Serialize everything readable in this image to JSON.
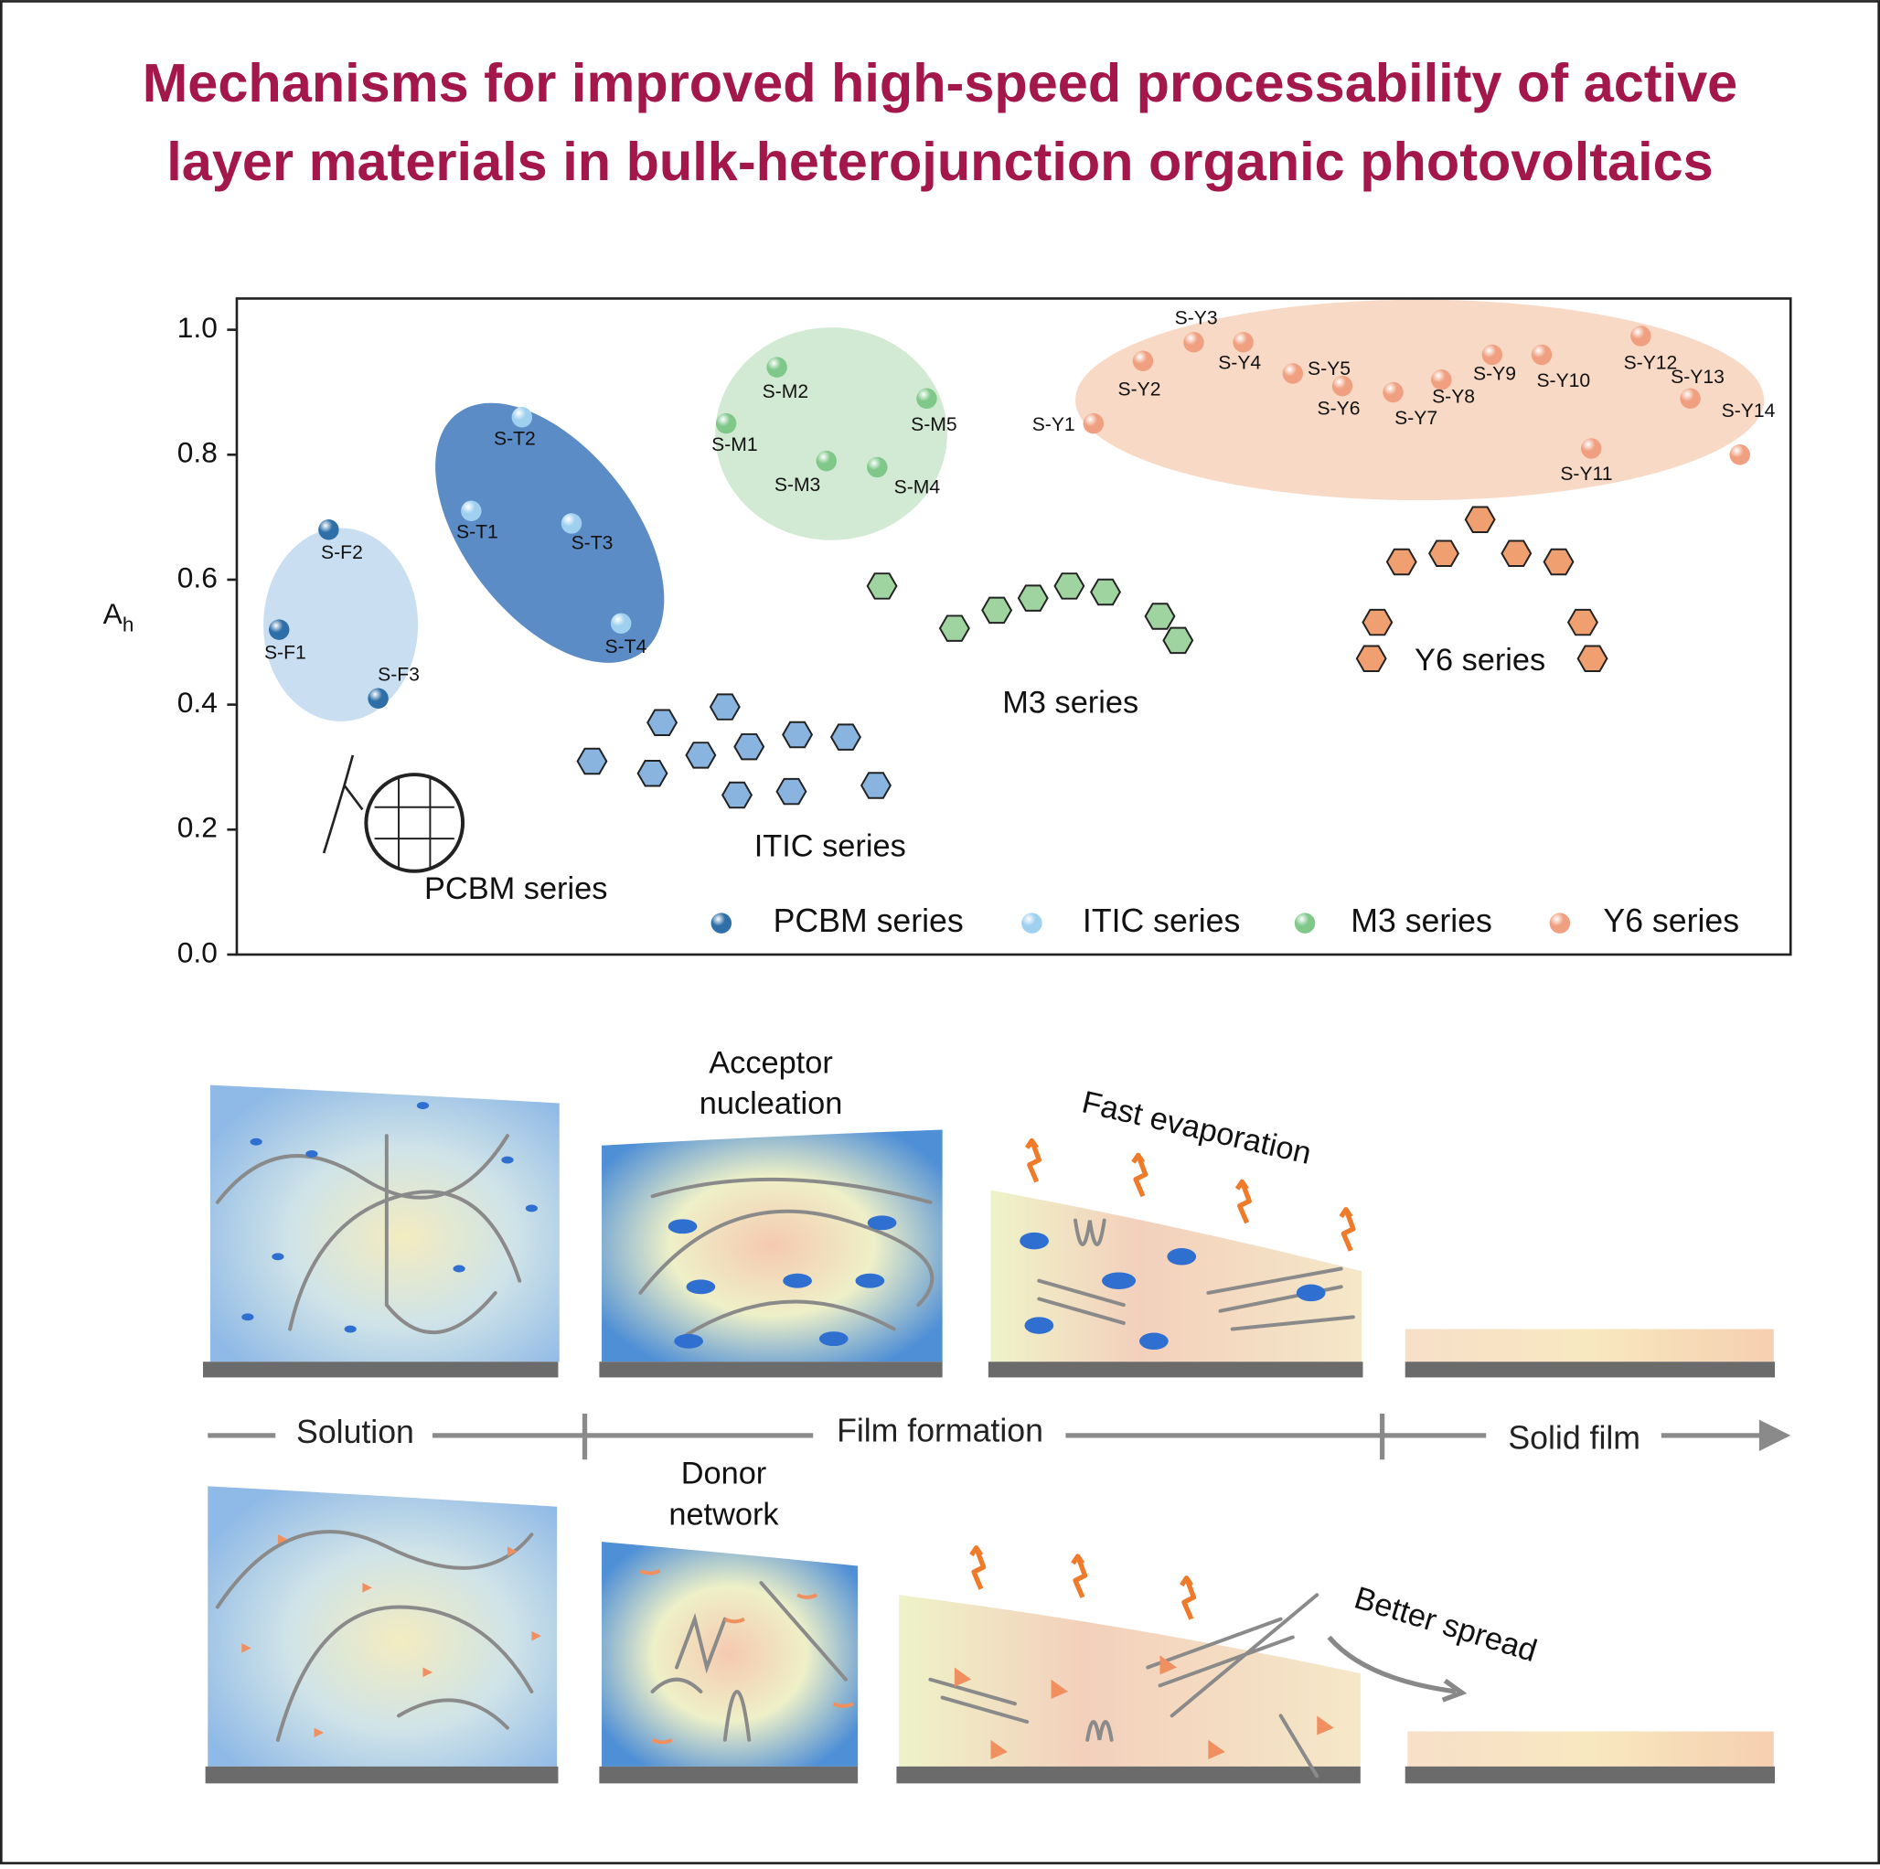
{
  "title_lines": [
    "Mechanisms for improved high-speed processability of active",
    "layer materials in bulk-heterojunction organic photovoltaics"
  ],
  "chart_data": {
    "type": "scatter",
    "ylabel": "A",
    "ylabel_sub": "h",
    "ylim": [
      0,
      1.05
    ],
    "yticks": [
      {
        "value": 0,
        "label": "0.0"
      },
      0.2,
      0.4,
      0.6,
      0.8,
      {
        "value": 1,
        "label": "1.0"
      }
    ],
    "legend": "lower right",
    "series": [
      {
        "name": "PCBM series",
        "color": "#2f6fa8",
        "labels": [
          "S-F1",
          "S-F2",
          "S-F3"
        ],
        "values": [
          0.52,
          0.68,
          0.41
        ]
      },
      {
        "name": "ITIC series",
        "color": "#9fd0f0",
        "labels": [
          "S-T1",
          "S-T2",
          "S-T3",
          "S-T4"
        ],
        "values": [
          0.71,
          0.86,
          0.69,
          0.53
        ]
      },
      {
        "name": "M3 series",
        "color": "#7fc88a",
        "labels": [
          "S-M1",
          "S-M2",
          "S-M3",
          "S-M4",
          "S-M5"
        ],
        "values": [
          0.85,
          0.94,
          0.79,
          0.78,
          0.89
        ]
      },
      {
        "name": "Y6 series",
        "color": "#f0a080",
        "labels": [
          "S-Y1",
          "S-Y2",
          "S-Y3",
          "S-Y4",
          "S-Y5",
          "S-Y6",
          "S-Y7",
          "S-Y8",
          "S-Y9",
          "S-Y10",
          "S-Y11",
          "S-Y12",
          "S-Y13",
          "S-Y14"
        ],
        "values": [
          0.85,
          0.95,
          0.98,
          0.98,
          0.93,
          0.91,
          0.9,
          0.92,
          0.96,
          0.96,
          0.81,
          0.99,
          0.89,
          0.8
        ]
      }
    ]
  },
  "diagram": {
    "acceptor": [
      "Acceptor",
      "nucleation"
    ],
    "fast_evaporation": "Fast evaporation",
    "solution": "Solution",
    "film_formation": "Film formation",
    "solid_film": "Solid film",
    "donor": [
      "Donor",
      "network"
    ],
    "better_spread": "Better spread"
  }
}
